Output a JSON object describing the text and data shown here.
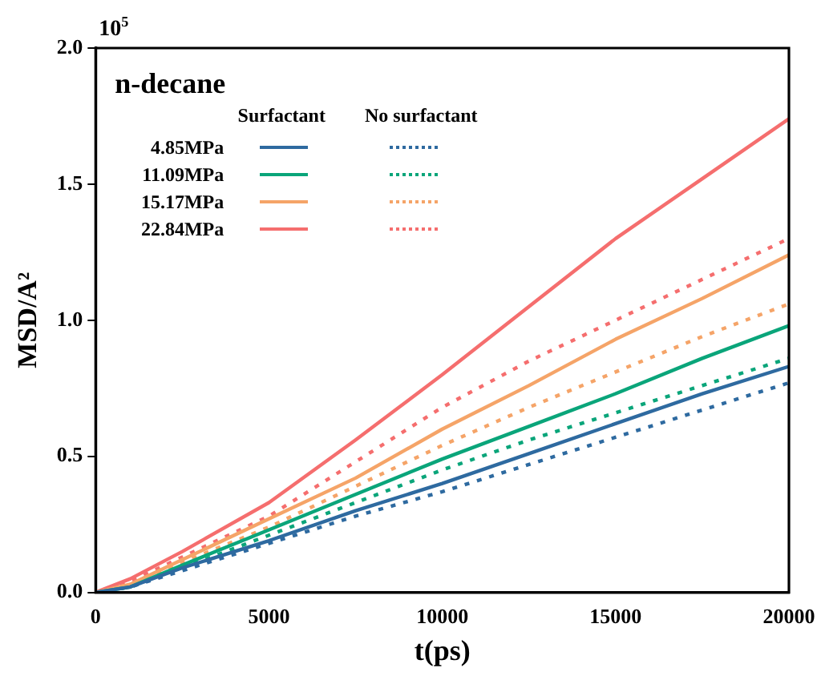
{
  "chart_data": {
    "type": "line",
    "title": "n-decane",
    "xlabel": "t(ps)",
    "ylabel": "MSD/A²",
    "annotations": [
      "10$^{5}$",
      "Surfactant",
      "No surfactant"
    ],
    "x": [
      0,
      1000,
      2500,
      5000,
      7500,
      10000,
      12500,
      15000,
      17500,
      20000
    ],
    "xlim": [
      0,
      20000
    ],
    "xticks": [
      0,
      5000,
      10000,
      15000,
      20000
    ],
    "ylim": [
      0,
      2
    ],
    "yticks": [
      {
        "value": 0,
        "label": "0.0"
      },
      0.5,
      {
        "value": 1,
        "label": "1.0"
      },
      1.5,
      {
        "value": 2,
        "label": "2.0"
      }
    ],
    "grid": false,
    "legend": "top left",
    "marker": "none",
    "series": [
      {
        "name": "4.85MPa",
        "color": "#2e6aa0",
        "line_style": "solid",
        "values": [
          0,
          0.02,
          0.09,
          0.19,
          0.3,
          0.4,
          0.51,
          0.62,
          0.73,
          0.83
        ]
      },
      {
        "name": "11.09MPa",
        "color": "#0aa57a",
        "line_style": "solid",
        "values": [
          0,
          0.02,
          0.1,
          0.23,
          0.36,
          0.49,
          0.61,
          0.73,
          0.86,
          0.98
        ]
      },
      {
        "name": "15.17MPa",
        "color": "#f5a468",
        "line_style": "solid",
        "values": [
          0,
          0.03,
          0.12,
          0.27,
          0.42,
          0.6,
          0.76,
          0.93,
          1.08,
          1.24
        ]
      },
      {
        "name": "22.84MPa",
        "color": "#f56e6e",
        "line_style": "solid",
        "values": [
          0,
          0.05,
          0.15,
          0.33,
          0.56,
          0.8,
          1.05,
          1.3,
          1.52,
          1.74
        ]
      },
      {
        "color": "#2e6aa0",
        "line_style": "dotted",
        "values": [
          0,
          0.02,
          0.08,
          0.18,
          0.28,
          0.37,
          0.47,
          0.57,
          0.67,
          0.77
        ]
      },
      {
        "color": "#0aa57a",
        "line_style": "dotted",
        "values": [
          0,
          0.02,
          0.09,
          0.21,
          0.33,
          0.45,
          0.56,
          0.66,
          0.76,
          0.86
        ]
      },
      {
        "color": "#f5a468",
        "line_style": "dotted",
        "values": [
          0,
          0.03,
          0.11,
          0.24,
          0.39,
          0.54,
          0.68,
          0.81,
          0.94,
          1.06
        ]
      },
      {
        "color": "#f56e6e",
        "line_style": "dotted",
        "values": [
          0,
          0.04,
          0.13,
          0.28,
          0.48,
          0.68,
          0.85,
          1.0,
          1.15,
          1.3
        ]
      }
    ]
  }
}
